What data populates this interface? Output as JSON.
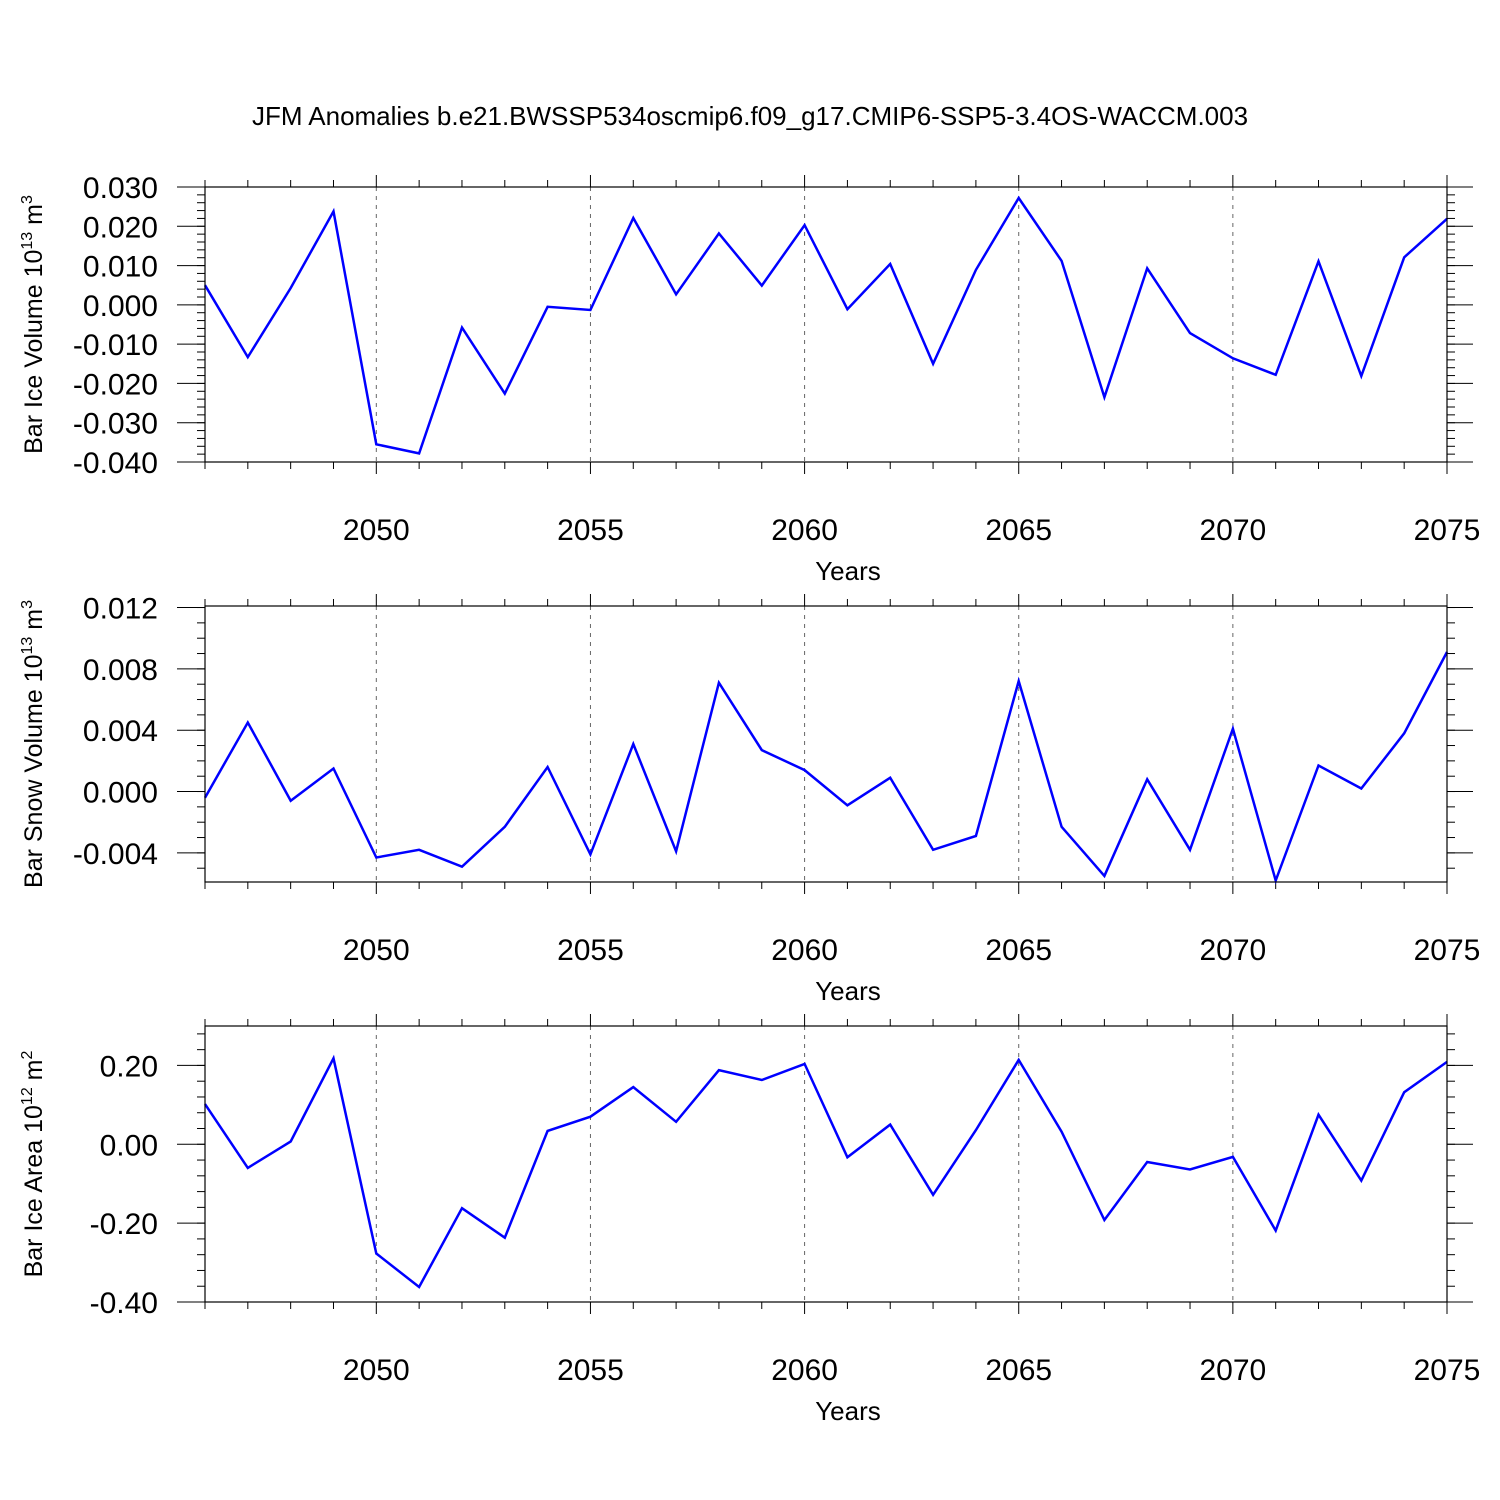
{
  "figure": {
    "title": "JFM Anomalies b.e21.BWSSP534oscmip6.f09_g17.CMIP6-SSP5-3.4OS-WACCM.003",
    "line_color": "#0000ff"
  },
  "chart_data": [
    {
      "type": "line",
      "title": "",
      "xlabel": "Years",
      "ylabel_main": "Bar Ice Volume 10",
      "ylabel_exp": "13",
      "ylabel_unit": " m",
      "ylabel_unit_exp": "3",
      "xlim": [
        2046,
        2075
      ],
      "ylim": [
        -0.04,
        0.03
      ],
      "xticks": [
        2050,
        2055,
        2060,
        2065,
        2070,
        2075
      ],
      "yticks": [
        -0.04,
        -0.03,
        -0.02,
        -0.01,
        0.0,
        0.01,
        0.02,
        0.03
      ],
      "ytick_labels": [
        "-0.040",
        "-0.030",
        "-0.020",
        "-0.010",
        "0.000",
        "0.010",
        "0.020",
        "0.030"
      ],
      "yminor": 0.002,
      "grid": "vertical-dashed-at-major-x",
      "x": [
        2046,
        2047,
        2048,
        2049,
        2050,
        2051,
        2052,
        2053,
        2054,
        2055,
        2056,
        2057,
        2058,
        2059,
        2060,
        2061,
        2062,
        2063,
        2064,
        2065,
        2066,
        2067,
        2068,
        2069,
        2070,
        2071,
        2072,
        2073,
        2074,
        2075
      ],
      "series": [
        {
          "values": [
            0.005,
            -0.0133,
            0.0043,
            0.0238,
            -0.0355,
            -0.0378,
            -0.0058,
            -0.0226,
            -0.0005,
            -0.0013,
            0.0221,
            0.0027,
            0.0182,
            0.0049,
            0.0203,
            -0.0011,
            0.0104,
            -0.015,
            0.0089,
            0.0272,
            0.0112,
            -0.0235,
            0.0093,
            -0.0072,
            -0.0136,
            -0.0178,
            0.0111,
            -0.0181,
            0.0121,
            0.0219
          ]
        }
      ]
    },
    {
      "type": "line",
      "title": "",
      "xlabel": "Years",
      "ylabel_main": "Bar Snow Volume 10",
      "ylabel_exp": "13",
      "ylabel_unit": " m",
      "ylabel_unit_exp": "3",
      "xlim": [
        2046,
        2075
      ],
      "ylim": [
        -0.0059,
        0.0121
      ],
      "xticks": [
        2050,
        2055,
        2060,
        2065,
        2070,
        2075
      ],
      "yticks": [
        -0.004,
        0.0,
        0.004,
        0.008,
        0.012
      ],
      "ytick_labels": [
        "-0.004",
        "0.000",
        "0.004",
        "0.008",
        "0.012"
      ],
      "yminor": 0.001,
      "grid": "vertical-dashed-at-major-x",
      "x": [
        2046,
        2047,
        2048,
        2049,
        2050,
        2051,
        2052,
        2053,
        2054,
        2055,
        2056,
        2057,
        2058,
        2059,
        2060,
        2061,
        2062,
        2063,
        2064,
        2065,
        2066,
        2067,
        2068,
        2069,
        2070,
        2071,
        2072,
        2073,
        2074,
        2075
      ],
      "series": [
        {
          "values": [
            -0.0004,
            0.0045,
            -0.0006,
            0.0015,
            -0.0043,
            -0.0038,
            -0.0049,
            -0.0023,
            0.0016,
            -0.0041,
            0.0031,
            -0.0039,
            0.0071,
            0.0027,
            0.0014,
            -0.0009,
            0.0009,
            -0.0038,
            -0.0029,
            0.0072,
            -0.0023,
            -0.0055,
            0.0008,
            -0.0038,
            0.0041,
            -0.0058,
            0.0017,
            0.0002,
            0.0038,
            0.0091
          ]
        }
      ]
    },
    {
      "type": "line",
      "title": "",
      "xlabel": "Years",
      "ylabel_main": "Bar Ice Area 10",
      "ylabel_exp": "12",
      "ylabel_unit": " m",
      "ylabel_unit_exp": "2",
      "xlim": [
        2046,
        2075
      ],
      "ylim": [
        -0.4,
        0.3
      ],
      "xticks": [
        2050,
        2055,
        2060,
        2065,
        2070,
        2075
      ],
      "yticks": [
        -0.4,
        -0.2,
        0.0,
        0.2
      ],
      "ytick_labels": [
        "-0.40",
        "-0.20",
        "0.00",
        "0.20"
      ],
      "yminor": 0.04,
      "grid": "vertical-dashed-at-major-x",
      "x": [
        2046,
        2047,
        2048,
        2049,
        2050,
        2051,
        2052,
        2053,
        2054,
        2055,
        2056,
        2057,
        2058,
        2059,
        2060,
        2061,
        2062,
        2063,
        2064,
        2065,
        2066,
        2067,
        2068,
        2069,
        2070,
        2071,
        2072,
        2073,
        2074,
        2075
      ],
      "series": [
        {
          "values": [
            0.102,
            -0.06,
            0.007,
            0.218,
            -0.277,
            -0.362,
            -0.162,
            -0.237,
            0.034,
            0.07,
            0.145,
            0.057,
            0.188,
            0.163,
            0.204,
            -0.033,
            0.05,
            -0.128,
            0.036,
            0.214,
            0.032,
            -0.192,
            -0.045,
            -0.064,
            -0.032,
            -0.219,
            0.075,
            -0.092,
            0.132,
            0.209
          ]
        }
      ]
    }
  ]
}
